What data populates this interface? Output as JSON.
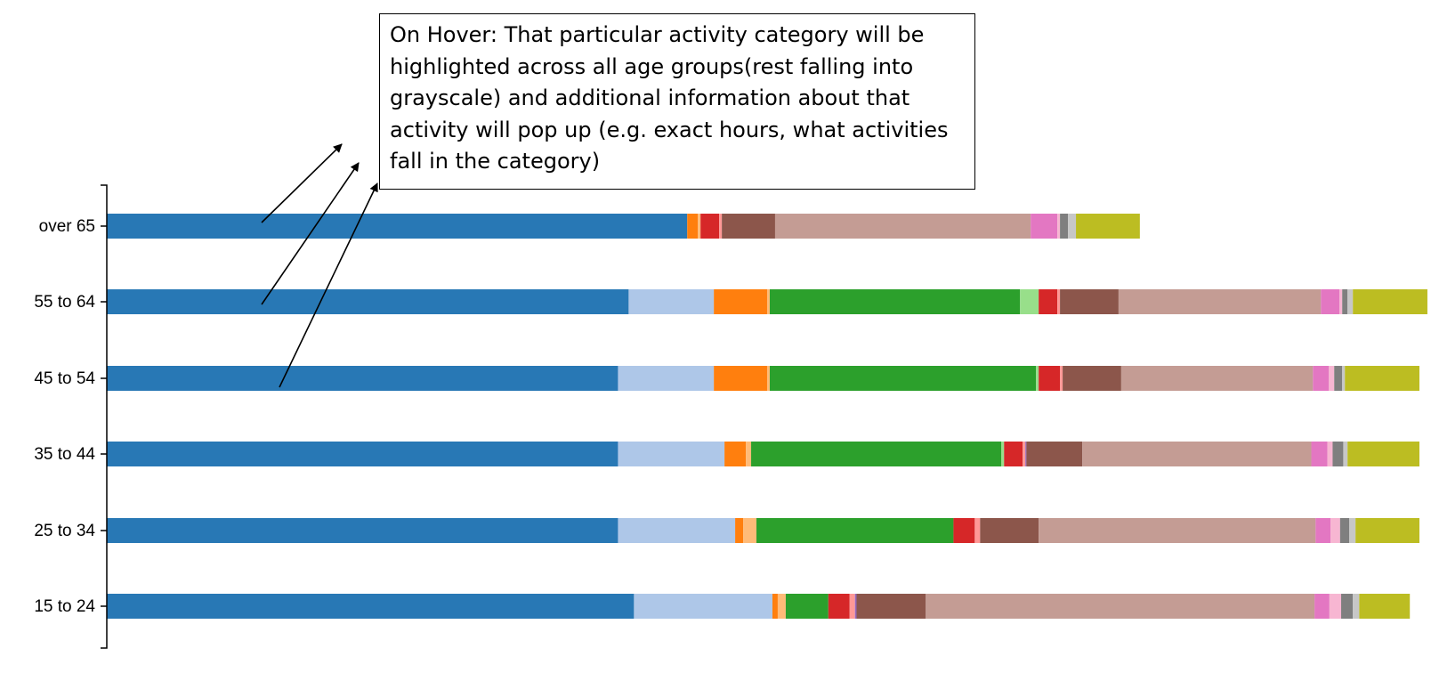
{
  "chart_data": {
    "type": "bar",
    "orientation": "horizontal",
    "stacked": true,
    "categories": [
      "over 65",
      "55 to 64",
      "45 to 54",
      "35 to 44",
      "25 to 34",
      "15 to 24"
    ],
    "series": [
      {
        "color": "#2878b5",
        "values": [
          10.9,
          9.8,
          9.6,
          9.6,
          9.6,
          9.9
        ]
      },
      {
        "color": "#aec7e8",
        "values": [
          0,
          1.6,
          1.8,
          2.0,
          2.2,
          2.6
        ]
      },
      {
        "color": "#ff7f0e",
        "values": [
          0.2,
          1.0,
          1.0,
          0.4,
          0.15,
          0.1
        ]
      },
      {
        "color": "#ffbb78",
        "values": [
          0.05,
          0.05,
          0.05,
          0.1,
          0.25,
          0.15
        ]
      },
      {
        "color": "#2ca02c",
        "values": [
          0,
          4.7,
          5.0,
          4.7,
          3.7,
          0.8
        ]
      },
      {
        "color": "#98df8a",
        "values": [
          0,
          0.35,
          0.05,
          0.05,
          0,
          0
        ]
      },
      {
        "color": "#d62728",
        "values": [
          0.35,
          0.35,
          0.4,
          0.35,
          0.4,
          0.4
        ]
      },
      {
        "color": "#ff9896",
        "values": [
          0.05,
          0.05,
          0.05,
          0.05,
          0.1,
          0.1
        ]
      },
      {
        "color": "#9467bd",
        "values": [
          0,
          0,
          0,
          0.02,
          0,
          0.03
        ]
      },
      {
        "color": "#8c564b",
        "values": [
          1.0,
          1.1,
          1.1,
          1.05,
          1.1,
          1.3
        ]
      },
      {
        "color": "#c49c94",
        "values": [
          4.8,
          3.8,
          3.6,
          4.3,
          5.2,
          7.3
        ]
      },
      {
        "color": "#e377c2",
        "values": [
          0.5,
          0.35,
          0.3,
          0.3,
          0.28,
          0.28
        ]
      },
      {
        "color": "#f7b6d2",
        "values": [
          0.05,
          0.05,
          0.1,
          0.1,
          0.18,
          0.22
        ]
      },
      {
        "color": "#7f7f7f",
        "values": [
          0.15,
          0.1,
          0.15,
          0.2,
          0.17,
          0.22
        ]
      },
      {
        "color": "#c7c7c7",
        "values": [
          0.15,
          0.1,
          0.05,
          0.08,
          0.12,
          0.12
        ]
      },
      {
        "color": "#bcbd22",
        "values": [
          1.2,
          1.4,
          1.4,
          1.35,
          1.2,
          0.95
        ]
      }
    ],
    "xlim": [
      0,
      24.6
    ],
    "grid": false,
    "legend": "none",
    "title": "",
    "xlabel": "",
    "ylabel": ""
  },
  "annotation": {
    "text": "On Hover: That particular activity category will be highlighted across all age groups(rest falling into grayscale) and additional information about that activity will pop up (e.g. exact hours, what activities fall in the category)"
  }
}
